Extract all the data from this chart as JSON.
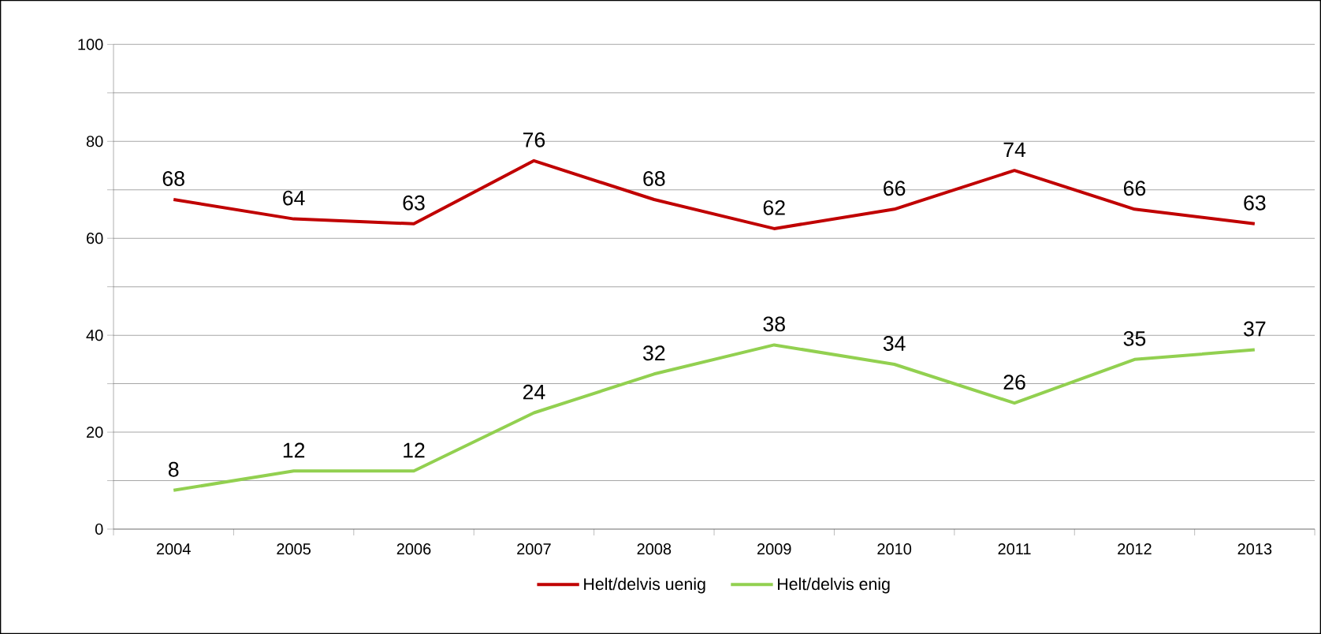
{
  "chart_data": {
    "type": "line",
    "categories": [
      "2004",
      "2005",
      "2006",
      "2007",
      "2008",
      "2009",
      "2010",
      "2011",
      "2012",
      "2013"
    ],
    "series": [
      {
        "name": "Helt/delvis uenig",
        "color": "#c00000",
        "values": [
          68,
          64,
          63,
          76,
          68,
          62,
          66,
          74,
          66,
          63
        ]
      },
      {
        "name": "Helt/delvis enig",
        "color": "#92d050",
        "values": [
          8,
          12,
          12,
          24,
          32,
          38,
          34,
          26,
          35,
          37
        ]
      }
    ],
    "ylim": [
      0,
      100
    ],
    "yticks": [
      0,
      {
        "value": 10,
        "label": null
      },
      20,
      {
        "value": 30,
        "label": null
      },
      40,
      {
        "value": 50,
        "label": null
      },
      60,
      {
        "value": 70,
        "label": null
      },
      80,
      {
        "value": 90,
        "label": null
      },
      100
    ],
    "grid": "y",
    "legend": "bottom",
    "data_labels": true,
    "marker": "none",
    "line_style": "solid"
  }
}
